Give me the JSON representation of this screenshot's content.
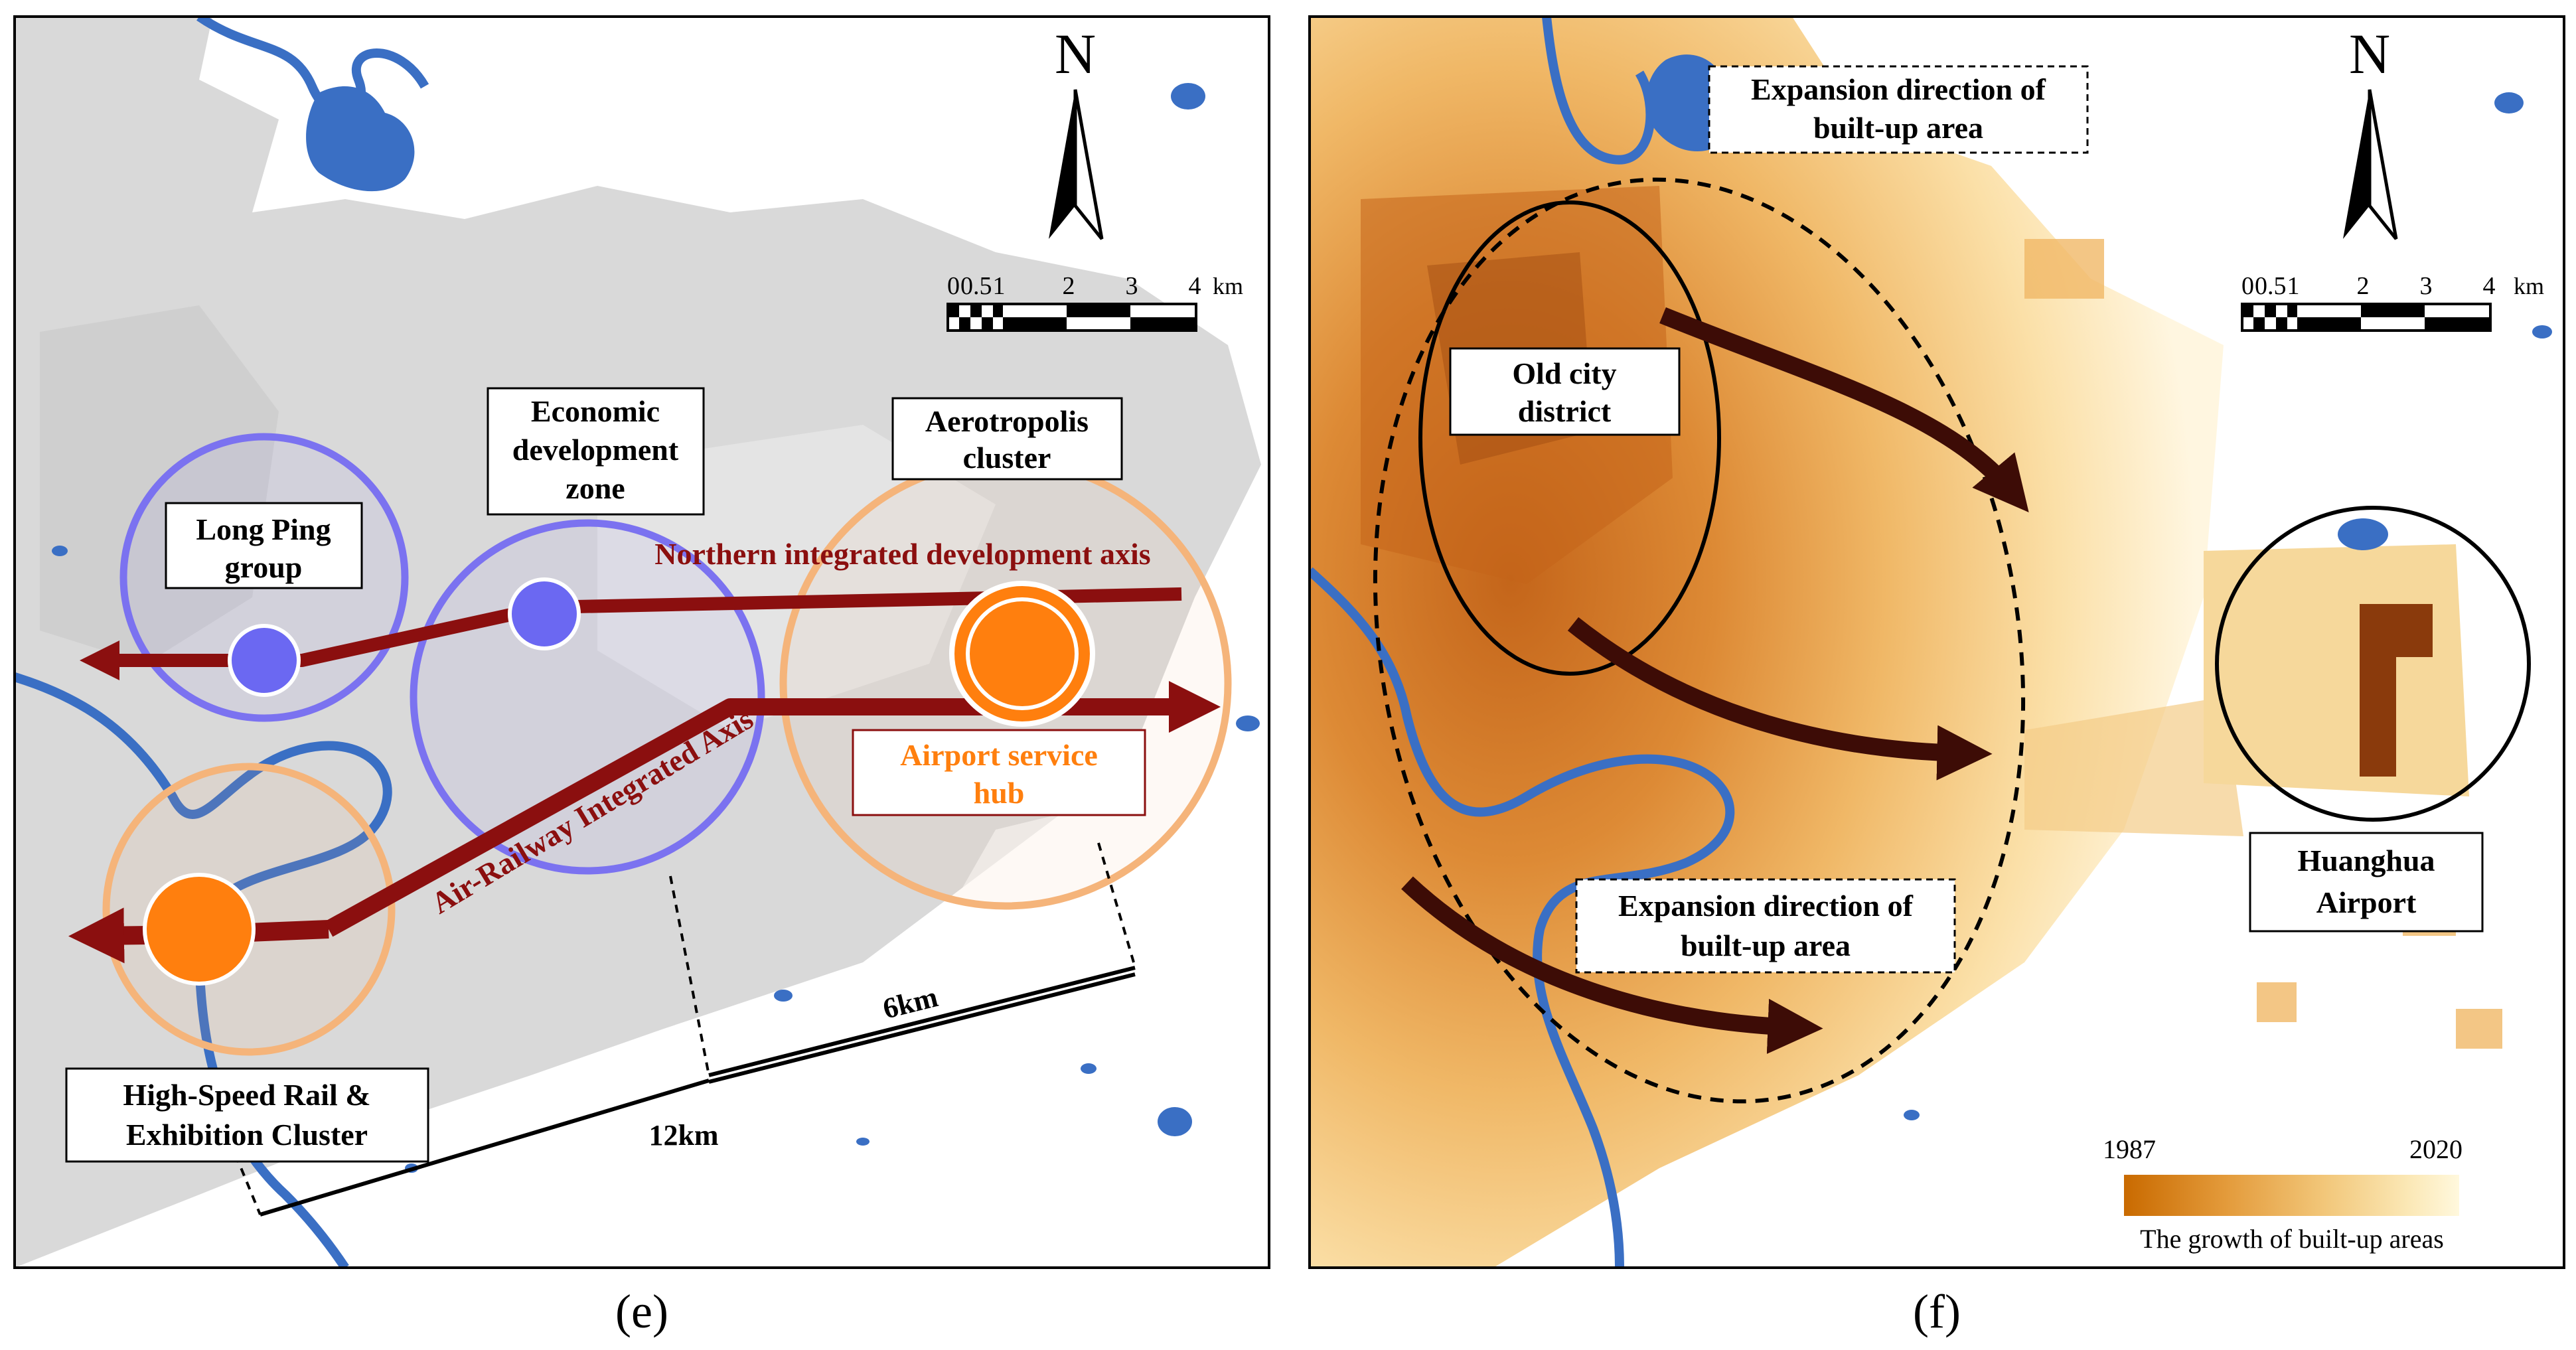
{
  "panels": {
    "left": {
      "caption": "(e)",
      "north_label": "N",
      "scalebar": {
        "ticks": [
          "0",
          "0.5",
          "1",
          "2",
          "3",
          "4"
        ],
        "unit": "km"
      },
      "labels": {
        "long_ping": [
          "Long Ping",
          "group"
        ],
        "economic_zone": [
          "Economic",
          "development",
          "zone"
        ],
        "aerotropolis": [
          "Aerotropolis",
          "cluster"
        ],
        "airport_hub": [
          "Airport service",
          "hub"
        ],
        "hsr_cluster": [
          "High-Speed Rail &",
          "Exhibition Cluster"
        ],
        "northern_axis": "Northern integrated  development axis",
        "air_railway_axis": "Air-Railway Integrated Axis",
        "dist_6km": "6km",
        "dist_12km": "12km"
      },
      "colors": {
        "purple_cluster": "#7b72f0",
        "orange_cluster": "#f5b47a",
        "axis_arrow": "#8b0f0f",
        "node_orange": "#ff7f0e",
        "node_purple": "#6b68f2",
        "water": "#3a6fc4",
        "built_up": "#d9d9d9"
      }
    },
    "right": {
      "caption": "(f)",
      "north_label": "N",
      "scalebar": {
        "ticks": [
          "0",
          "0.5",
          "1",
          "2",
          "3",
          "4"
        ],
        "unit": "km"
      },
      "labels": {
        "expansion_top": [
          "Expansion direction of",
          "built-up area"
        ],
        "expansion_bottom": [
          "Expansion direction of",
          "built-up area"
        ],
        "old_city": [
          "Old city",
          "district"
        ],
        "huanghua": [
          "Huanghua",
          "Airport"
        ]
      },
      "legend": {
        "start_year": "1987",
        "end_year": "2020",
        "title": "The growth of built-up areas",
        "gradient": [
          "#c96a00",
          "#e39a3a",
          "#f2c77a",
          "#fbe8b6",
          "#fff8dd"
        ]
      },
      "colors": {
        "expansion_arrow": "#3d0c06",
        "water": "#3a6fc4"
      }
    }
  }
}
